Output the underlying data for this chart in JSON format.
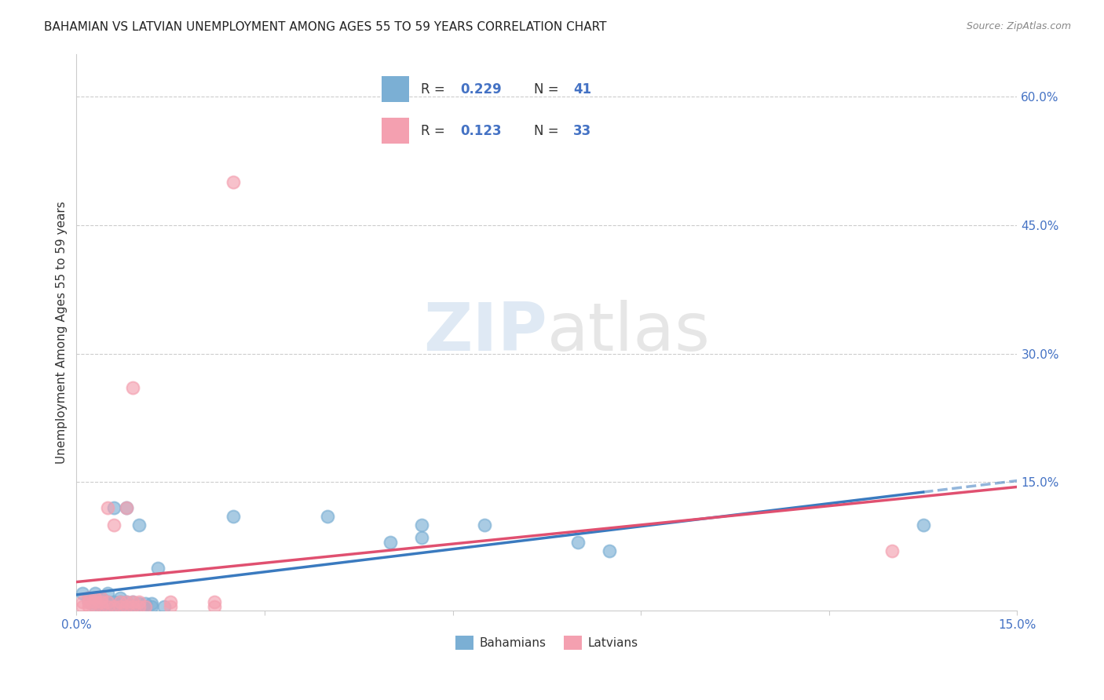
{
  "title": "BAHAMIAN VS LATVIAN UNEMPLOYMENT AMONG AGES 55 TO 59 YEARS CORRELATION CHART",
  "source": "Source: ZipAtlas.com",
  "ylabel": "Unemployment Among Ages 55 to 59 years",
  "xlim": [
    0.0,
    0.15
  ],
  "ylim": [
    0.0,
    0.65
  ],
  "xticks": [
    0.0,
    0.03,
    0.06,
    0.09,
    0.12,
    0.15
  ],
  "yticks_right": [
    0.0,
    0.15,
    0.3,
    0.45,
    0.6
  ],
  "ytick_labels_right": [
    "",
    "15.0%",
    "30.0%",
    "45.0%",
    "60.0%"
  ],
  "xtick_labels": [
    "0.0%",
    "",
    "",
    "",
    "",
    "15.0%"
  ],
  "blue_color": "#7bafd4",
  "pink_color": "#f4a0b0",
  "blue_line_color": "#3a7abf",
  "pink_line_color": "#e05070",
  "blue_scatter": [
    [
      0.001,
      0.02
    ],
    [
      0.002,
      0.01
    ],
    [
      0.002,
      0.015
    ],
    [
      0.003,
      0.005
    ],
    [
      0.003,
      0.01
    ],
    [
      0.003,
      0.02
    ],
    [
      0.004,
      0.005
    ],
    [
      0.004,
      0.01
    ],
    [
      0.004,
      0.015
    ],
    [
      0.005,
      0.005
    ],
    [
      0.005,
      0.01
    ],
    [
      0.005,
      0.02
    ],
    [
      0.006,
      0.005
    ],
    [
      0.006,
      0.01
    ],
    [
      0.006,
      0.12
    ],
    [
      0.007,
      0.005
    ],
    [
      0.007,
      0.01
    ],
    [
      0.007,
      0.015
    ],
    [
      0.008,
      0.005
    ],
    [
      0.008,
      0.01
    ],
    [
      0.008,
      0.12
    ],
    [
      0.009,
      0.005
    ],
    [
      0.009,
      0.01
    ],
    [
      0.01,
      0.005
    ],
    [
      0.01,
      0.008
    ],
    [
      0.01,
      0.1
    ],
    [
      0.011,
      0.005
    ],
    [
      0.011,
      0.008
    ],
    [
      0.012,
      0.005
    ],
    [
      0.012,
      0.008
    ],
    [
      0.013,
      0.05
    ],
    [
      0.014,
      0.005
    ],
    [
      0.025,
      0.11
    ],
    [
      0.04,
      0.11
    ],
    [
      0.05,
      0.08
    ],
    [
      0.055,
      0.085
    ],
    [
      0.055,
      0.1
    ],
    [
      0.065,
      0.1
    ],
    [
      0.08,
      0.08
    ],
    [
      0.085,
      0.07
    ],
    [
      0.135,
      0.1
    ]
  ],
  "pink_scatter": [
    [
      0.001,
      0.005
    ],
    [
      0.001,
      0.01
    ],
    [
      0.002,
      0.005
    ],
    [
      0.002,
      0.01
    ],
    [
      0.002,
      0.015
    ],
    [
      0.003,
      0.005
    ],
    [
      0.003,
      0.01
    ],
    [
      0.003,
      0.015
    ],
    [
      0.004,
      0.005
    ],
    [
      0.004,
      0.01
    ],
    [
      0.004,
      0.015
    ],
    [
      0.005,
      0.005
    ],
    [
      0.005,
      0.01
    ],
    [
      0.005,
      0.12
    ],
    [
      0.006,
      0.005
    ],
    [
      0.006,
      0.1
    ],
    [
      0.007,
      0.005
    ],
    [
      0.007,
      0.01
    ],
    [
      0.008,
      0.005
    ],
    [
      0.008,
      0.01
    ],
    [
      0.008,
      0.12
    ],
    [
      0.009,
      0.005
    ],
    [
      0.009,
      0.01
    ],
    [
      0.009,
      0.26
    ],
    [
      0.01,
      0.005
    ],
    [
      0.01,
      0.01
    ],
    [
      0.011,
      0.005
    ],
    [
      0.015,
      0.005
    ],
    [
      0.015,
      0.01
    ],
    [
      0.022,
      0.005
    ],
    [
      0.022,
      0.01
    ],
    [
      0.025,
      0.5
    ],
    [
      0.13,
      0.07
    ]
  ],
  "legend_blue_r": "0.229",
  "legend_blue_n": "41",
  "legend_pink_r": "0.123",
  "legend_pink_n": "33",
  "watermark_zip": "ZIP",
  "watermark_atlas": "atlas",
  "tick_label_color": "#4472c4",
  "ylabel_color": "#333333",
  "grid_color": "#cccccc"
}
